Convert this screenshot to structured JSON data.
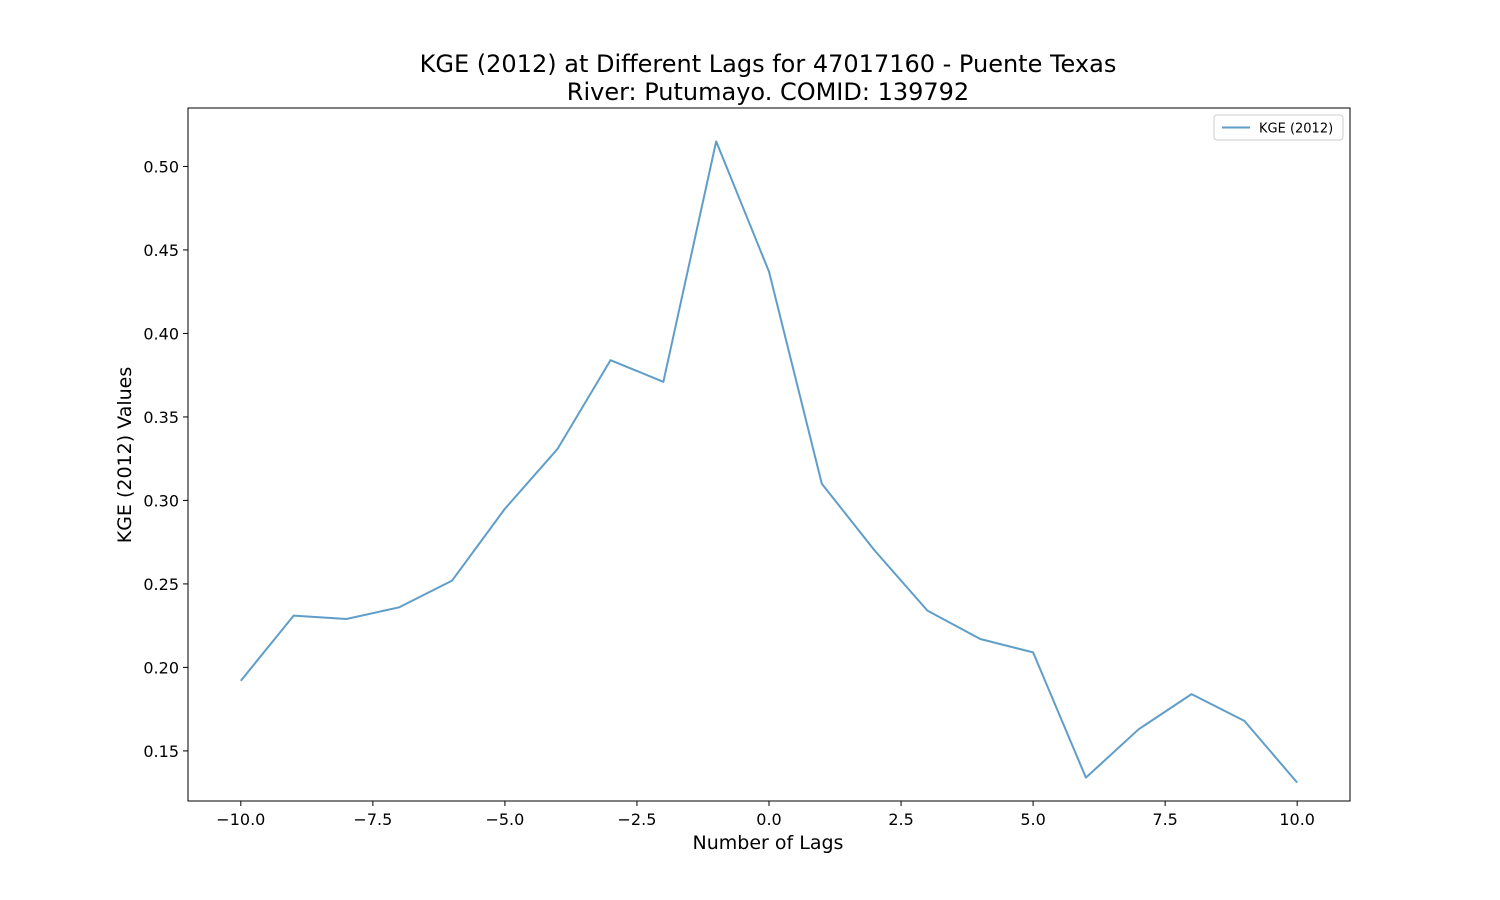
{
  "chart_data": {
    "type": "line",
    "title": "KGE (2012) at Different Lags for 47017160 - Puente Texas",
    "subtitle": "River: Putumayo. COMID: 139792",
    "xlabel": "Number of Lags",
    "ylabel": "KGE (2012) Values",
    "xlim": [
      -11,
      11
    ],
    "ylim": [
      0.12,
      0.535
    ],
    "xticks": [
      -10.0,
      -7.5,
      -5.0,
      -2.5,
      0.0,
      2.5,
      5.0,
      7.5,
      10.0
    ],
    "xtick_labels": [
      "−10.0",
      "−7.5",
      "−5.0",
      "−2.5",
      "0.0",
      "2.5",
      "5.0",
      "7.5",
      "10.0"
    ],
    "yticks": [
      0.15,
      0.2,
      0.25,
      0.3,
      0.35,
      0.4,
      0.45,
      0.5
    ],
    "ytick_labels": [
      "0.15",
      "0.20",
      "0.25",
      "0.30",
      "0.35",
      "0.40",
      "0.45",
      "0.50"
    ],
    "grid": false,
    "legend_position": "top-right",
    "series": [
      {
        "name": "KGE (2012)",
        "color": "#5f9ec8",
        "x": [
          -10,
          -9,
          -8,
          -7,
          -6,
          -5,
          -4,
          -3,
          -2,
          -1,
          0,
          1,
          2,
          3,
          4,
          5,
          6,
          7,
          8,
          9,
          10
        ],
        "y": [
          0.192,
          0.231,
          0.229,
          0.236,
          0.252,
          0.295,
          0.331,
          0.384,
          0.371,
          0.515,
          0.437,
          0.31,
          0.27,
          0.234,
          0.217,
          0.209,
          0.134,
          0.163,
          0.184,
          0.168,
          0.131
        ]
      }
    ]
  }
}
